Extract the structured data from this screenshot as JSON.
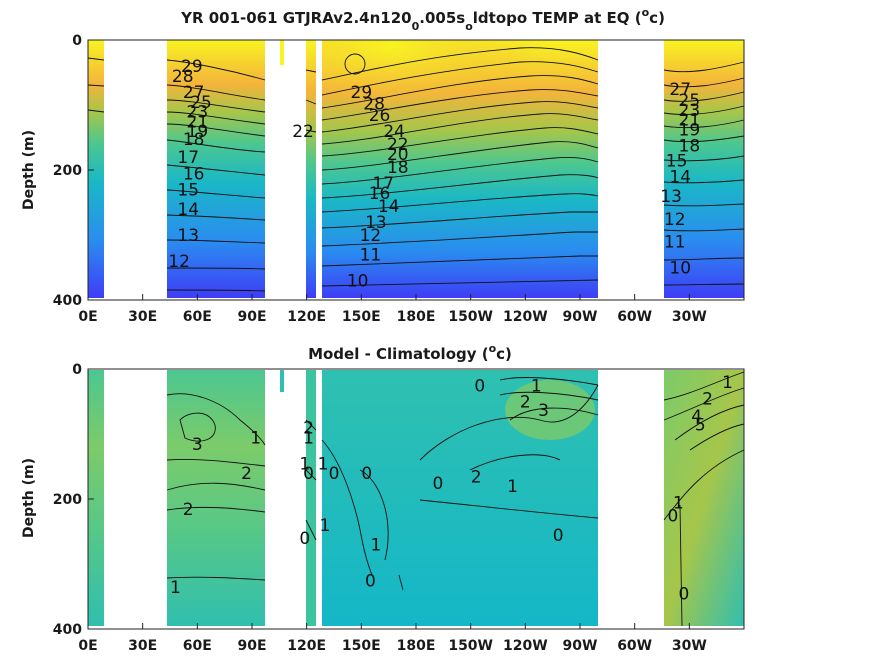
{
  "chart_data": [
    {
      "type": "heatmap",
      "title": "YR 001-061 GTJRAv2.4n120",
      "title_sub1": "0",
      "title_mid": ".005s",
      "title_sub2": "o",
      "title_end": "ldtopo TEMP at EQ (",
      "title_sup": "o",
      "title_close": "c)",
      "ylabel": "Depth (m)",
      "yticks": [
        "0",
        "200",
        "400"
      ],
      "xticks": [
        "0E",
        "30E",
        "60E",
        "90E",
        "120E",
        "150E",
        "180E",
        "150W",
        "120W",
        "90W",
        "60W",
        "30W"
      ],
      "xlim": [
        0,
        360
      ],
      "ylim": [
        400,
        0
      ],
      "colormap": [
        "#3e3df6",
        "#2a8cf0",
        "#1ab8c6",
        "#4cc790",
        "#a6c64a",
        "#f4b43a",
        "#f8f322"
      ],
      "contour_labels": [
        {
          "text": "29",
          "lon": 57,
          "depth": 40
        },
        {
          "text": "28",
          "lon": 52,
          "depth": 55
        },
        {
          "text": "27",
          "lon": 58,
          "depth": 80
        },
        {
          "text": "25",
          "lon": 62,
          "depth": 95
        },
        {
          "text": "23",
          "lon": 60,
          "depth": 110
        },
        {
          "text": "21",
          "lon": 60,
          "depth": 125
        },
        {
          "text": "19",
          "lon": 60,
          "depth": 140
        },
        {
          "text": "18",
          "lon": 58,
          "depth": 152
        },
        {
          "text": "17",
          "lon": 55,
          "depth": 180
        },
        {
          "text": "16",
          "lon": 58,
          "depth": 205
        },
        {
          "text": "15",
          "lon": 55,
          "depth": 230
        },
        {
          "text": "14",
          "lon": 55,
          "depth": 260
        },
        {
          "text": "13",
          "lon": 55,
          "depth": 300
        },
        {
          "text": "12",
          "lon": 50,
          "depth": 340
        },
        {
          "text": "22",
          "lon": 118,
          "depth": 140
        },
        {
          "text": "29",
          "lon": 150,
          "depth": 80
        },
        {
          "text": "28",
          "lon": 157,
          "depth": 98
        },
        {
          "text": "26",
          "lon": 160,
          "depth": 115
        },
        {
          "text": "24",
          "lon": 168,
          "depth": 140
        },
        {
          "text": "22",
          "lon": 170,
          "depth": 160
        },
        {
          "text": "20",
          "lon": 170,
          "depth": 175
        },
        {
          "text": "18",
          "lon": 170,
          "depth": 195
        },
        {
          "text": "17",
          "lon": 162,
          "depth": 220
        },
        {
          "text": "16",
          "lon": 160,
          "depth": 235
        },
        {
          "text": "14",
          "lon": 165,
          "depth": 255
        },
        {
          "text": "13",
          "lon": 158,
          "depth": 280
        },
        {
          "text": "12",
          "lon": 155,
          "depth": 300
        },
        {
          "text": "11",
          "lon": 155,
          "depth": 330
        },
        {
          "text": "10",
          "lon": 148,
          "depth": 370
        },
        {
          "text": "27",
          "lon": 325,
          "depth": 75
        },
        {
          "text": "25",
          "lon": 330,
          "depth": 92
        },
        {
          "text": "23",
          "lon": 330,
          "depth": 108
        },
        {
          "text": "21",
          "lon": 330,
          "depth": 122
        },
        {
          "text": "19",
          "lon": 330,
          "depth": 138
        },
        {
          "text": "18",
          "lon": 330,
          "depth": 162
        },
        {
          "text": "15",
          "lon": 323,
          "depth": 185
        },
        {
          "text": "14",
          "lon": 325,
          "depth": 210
        },
        {
          "text": "13",
          "lon": 320,
          "depth": 240
        },
        {
          "text": "12",
          "lon": 322,
          "depth": 275
        },
        {
          "text": "11",
          "lon": 322,
          "depth": 310
        },
        {
          "text": "10",
          "lon": 325,
          "depth": 350
        }
      ]
    },
    {
      "type": "heatmap",
      "title": "Model - Climatology (",
      "title_sup": "o",
      "title_close": "c)",
      "ylabel": "Depth (m)",
      "yticks": [
        "0",
        "200",
        "400"
      ],
      "xticks": [
        "0E",
        "30E",
        "60E",
        "90E",
        "120E",
        "150E",
        "180E",
        "150W",
        "120W",
        "90W",
        "60W",
        "30W"
      ],
      "xlim": [
        0,
        360
      ],
      "ylim": [
        400,
        0
      ],
      "colormap": [
        "#1ab8c6",
        "#2fc0b0",
        "#4cc790",
        "#7ccb6a",
        "#a6c64a"
      ],
      "contour_labels": [
        {
          "text": "3",
          "lon": 60,
          "depth": 115
        },
        {
          "text": "1",
          "lon": 92,
          "depth": 105
        },
        {
          "text": "2",
          "lon": 87,
          "depth": 160
        },
        {
          "text": "2",
          "lon": 55,
          "depth": 215
        },
        {
          "text": "1",
          "lon": 48,
          "depth": 335
        },
        {
          "text": "1",
          "lon": 121,
          "depth": 105
        },
        {
          "text": "2",
          "lon": 121,
          "depth": 90
        },
        {
          "text": "1",
          "lon": 119,
          "depth": 145
        },
        {
          "text": "0",
          "lon": 121,
          "depth": 160
        },
        {
          "text": "1",
          "lon": 129,
          "depth": 145
        },
        {
          "text": "0",
          "lon": 135,
          "depth": 160
        },
        {
          "text": "0",
          "lon": 119,
          "depth": 260
        },
        {
          "text": "1",
          "lon": 130,
          "depth": 240
        },
        {
          "text": "0",
          "lon": 153,
          "depth": 160
        },
        {
          "text": "1",
          "lon": 158,
          "depth": 270
        },
        {
          "text": "0",
          "lon": 155,
          "depth": 325
        },
        {
          "text": "0",
          "lon": 192,
          "depth": 175
        },
        {
          "text": "2",
          "lon": 213,
          "depth": 165
        },
        {
          "text": "1",
          "lon": 233,
          "depth": 180
        },
        {
          "text": "0",
          "lon": 215,
          "depth": 25
        },
        {
          "text": "1",
          "lon": 246,
          "depth": 25
        },
        {
          "text": "2",
          "lon": 240,
          "depth": 50
        },
        {
          "text": "3",
          "lon": 250,
          "depth": 63
        },
        {
          "text": "0",
          "lon": 258,
          "depth": 255
        },
        {
          "text": "1",
          "lon": 351,
          "depth": 20
        },
        {
          "text": "2",
          "lon": 340,
          "depth": 45
        },
        {
          "text": "4",
          "lon": 334,
          "depth": 72
        },
        {
          "text": "5",
          "lon": 336,
          "depth": 85
        },
        {
          "text": "0",
          "lon": 321,
          "depth": 225
        },
        {
          "text": "1",
          "lon": 324,
          "depth": 205
        },
        {
          "text": "0",
          "lon": 327,
          "depth": 345
        }
      ]
    }
  ]
}
